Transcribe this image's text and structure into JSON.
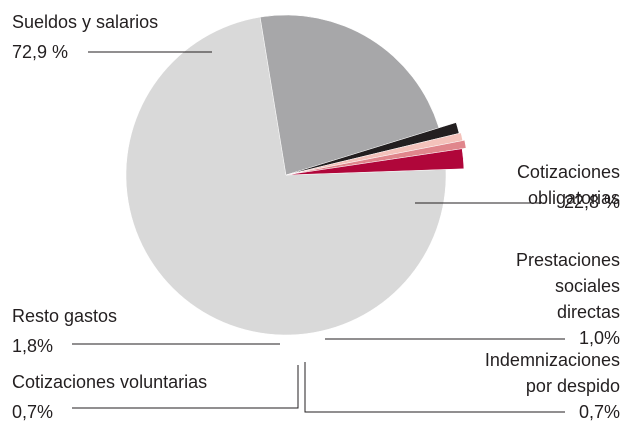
{
  "chart_data": {
    "type": "pie",
    "categories": [
      "Sueldos y salarios",
      "Cotizaciones\nobligatorias",
      "Prestaciones\nsociales\ndirectas",
      "Indemnizaciones\npor despido",
      "Cotizaciones voluntarias",
      "Resto gastos"
    ],
    "values": [
      72.9,
      22.8,
      1.0,
      0.7,
      0.7,
      1.8
    ],
    "value_labels": [
      "72,9 %",
      "22,8 %",
      "1,0%",
      "0,7%",
      "0,7%",
      "1,8%"
    ],
    "colors": [
      "#d9d9d9",
      "#a7a7a9",
      "#231f20",
      "#f4c2bb",
      "#e0868c",
      "#b0063a"
    ]
  }
}
